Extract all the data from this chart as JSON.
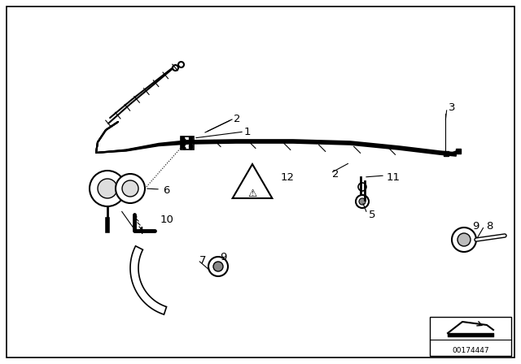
{
  "bg_color": "#ffffff",
  "border_color": "#000000",
  "part_id": "00174447",
  "lc": "#000000",
  "lw": 1.5,
  "figsize": [
    6.4,
    4.48
  ],
  "dpi": 100
}
